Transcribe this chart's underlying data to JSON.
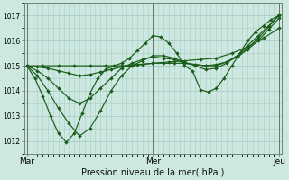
{
  "bg_color": "#cce8e0",
  "grid_color": "#aaccc4",
  "line_color": "#1a5c1a",
  "marker_color": "#1a5c1a",
  "title": "Pression niveau de la mer( hPa )",
  "ylim": [
    1011.5,
    1017.5
  ],
  "yticks": [
    1012,
    1013,
    1014,
    1015,
    1016,
    1017
  ],
  "day_labels": [
    "Mar",
    "Mer",
    "Jeu"
  ],
  "day_positions": [
    0,
    48,
    96
  ],
  "s0_x": [
    0,
    3,
    6,
    9,
    12,
    15,
    18,
    21,
    24,
    27,
    30,
    33,
    36,
    39,
    42,
    45,
    48,
    51,
    54,
    57,
    60,
    63,
    66,
    69,
    72,
    75,
    78,
    81,
    84,
    87,
    90,
    93,
    96
  ],
  "s0_y": [
    1015.0,
    1014.5,
    1013.8,
    1013.0,
    1012.3,
    1011.95,
    1012.3,
    1013.1,
    1013.9,
    1014.5,
    1014.85,
    1015.0,
    1015.1,
    1015.3,
    1015.6,
    1015.9,
    1016.2,
    1016.15,
    1015.9,
    1015.5,
    1015.0,
    1014.8,
    1014.05,
    1013.95,
    1014.1,
    1014.5,
    1015.0,
    1015.5,
    1016.0,
    1016.35,
    1016.6,
    1016.85,
    1017.0
  ],
  "s1_x": [
    0,
    4,
    8,
    12,
    16,
    20,
    24,
    28,
    32,
    36,
    40,
    44,
    48,
    52,
    56,
    60,
    64,
    68,
    72,
    76,
    80,
    84,
    88,
    92,
    96
  ],
  "s1_y": [
    1015.0,
    1014.6,
    1014.0,
    1013.3,
    1012.7,
    1012.2,
    1012.5,
    1013.2,
    1014.0,
    1014.6,
    1015.0,
    1015.2,
    1015.4,
    1015.4,
    1015.3,
    1015.15,
    1015.0,
    1014.85,
    1014.9,
    1015.1,
    1015.4,
    1015.8,
    1016.2,
    1016.6,
    1017.0
  ],
  "s2_x": [
    0,
    4,
    8,
    12,
    16,
    20,
    24,
    28,
    32,
    36,
    40,
    44,
    48,
    52,
    56,
    60,
    64,
    68,
    72,
    76,
    80,
    84,
    88,
    92,
    96
  ],
  "s2_y": [
    1015.0,
    1014.8,
    1014.5,
    1014.1,
    1013.7,
    1013.5,
    1013.7,
    1014.1,
    1014.5,
    1014.9,
    1015.1,
    1015.25,
    1015.35,
    1015.3,
    1015.25,
    1015.1,
    1015.05,
    1015.0,
    1015.0,
    1015.15,
    1015.4,
    1015.7,
    1016.1,
    1016.55,
    1017.05
  ],
  "s3_x": [
    0,
    4,
    8,
    12,
    16,
    20,
    24,
    28,
    32,
    36,
    40,
    44,
    48,
    52,
    56,
    60,
    64,
    68,
    72,
    76,
    80,
    84,
    88,
    92,
    96
  ],
  "s3_y": [
    1015.0,
    1014.95,
    1014.9,
    1014.8,
    1014.7,
    1014.6,
    1014.65,
    1014.75,
    1014.85,
    1014.95,
    1015.0,
    1015.05,
    1015.1,
    1015.1,
    1015.1,
    1015.1,
    1015.05,
    1015.0,
    1015.05,
    1015.15,
    1015.35,
    1015.65,
    1016.0,
    1016.45,
    1016.9
  ],
  "s4_x": [
    0,
    6,
    12,
    18,
    24,
    30,
    36,
    42,
    48,
    54,
    60,
    66,
    72,
    78,
    84,
    90,
    96
  ],
  "s4_y": [
    1015.0,
    1015.0,
    1015.0,
    1015.0,
    1015.0,
    1015.0,
    1015.0,
    1015.05,
    1015.1,
    1015.15,
    1015.2,
    1015.25,
    1015.3,
    1015.5,
    1015.75,
    1016.1,
    1016.5
  ]
}
